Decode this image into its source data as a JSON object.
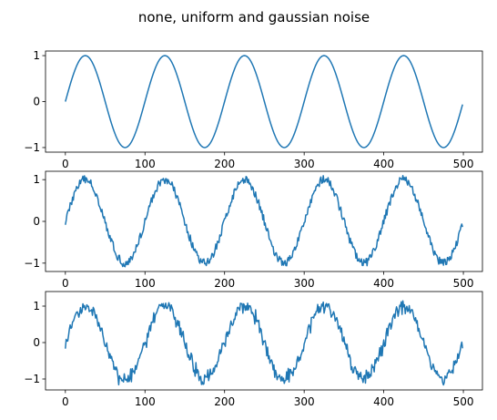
{
  "figure": {
    "title": "none, uniform and gaussian noise",
    "line_color": "#1f77b4",
    "axis_color": "#000000",
    "background": "#ffffff"
  },
  "chart_data": [
    {
      "type": "line",
      "title": "",
      "xlabel": "",
      "ylabel": "",
      "xlim": [
        -24.95,
        523.95
      ],
      "ylim": [
        -1.1,
        1.1
      ],
      "xticks": [
        0,
        100,
        200,
        300,
        400,
        500
      ],
      "yticks": [
        -1,
        0,
        1
      ],
      "grid": false,
      "series": [
        {
          "function": "sin(2*pi*x/100)",
          "noise": "none",
          "noise_amplitude": 0,
          "x_range": [
            0,
            499
          ],
          "n_points": 500
        }
      ]
    },
    {
      "type": "line",
      "title": "",
      "xlabel": "",
      "ylabel": "",
      "xlim": [
        -24.95,
        523.95
      ],
      "ylim": [
        -1.2,
        1.2
      ],
      "xticks": [
        0,
        100,
        200,
        300,
        400,
        500
      ],
      "yticks": [
        -1,
        0,
        1
      ],
      "grid": false,
      "series": [
        {
          "function": "sin(2*pi*x/100)",
          "noise": "uniform",
          "noise_amplitude": 0.1,
          "x_range": [
            0,
            499
          ],
          "n_points": 500
        }
      ]
    },
    {
      "type": "line",
      "title": "",
      "xlabel": "",
      "ylabel": "",
      "xlim": [
        -24.95,
        523.95
      ],
      "ylim": [
        -1.3,
        1.4
      ],
      "xticks": [
        0,
        100,
        200,
        300,
        400,
        500
      ],
      "yticks": [
        -1,
        0,
        1
      ],
      "grid": false,
      "series": [
        {
          "function": "sin(2*pi*x/100)",
          "noise": "gaussian",
          "noise_amplitude": 0.1,
          "x_range": [
            0,
            499
          ],
          "n_points": 500
        }
      ]
    }
  ]
}
